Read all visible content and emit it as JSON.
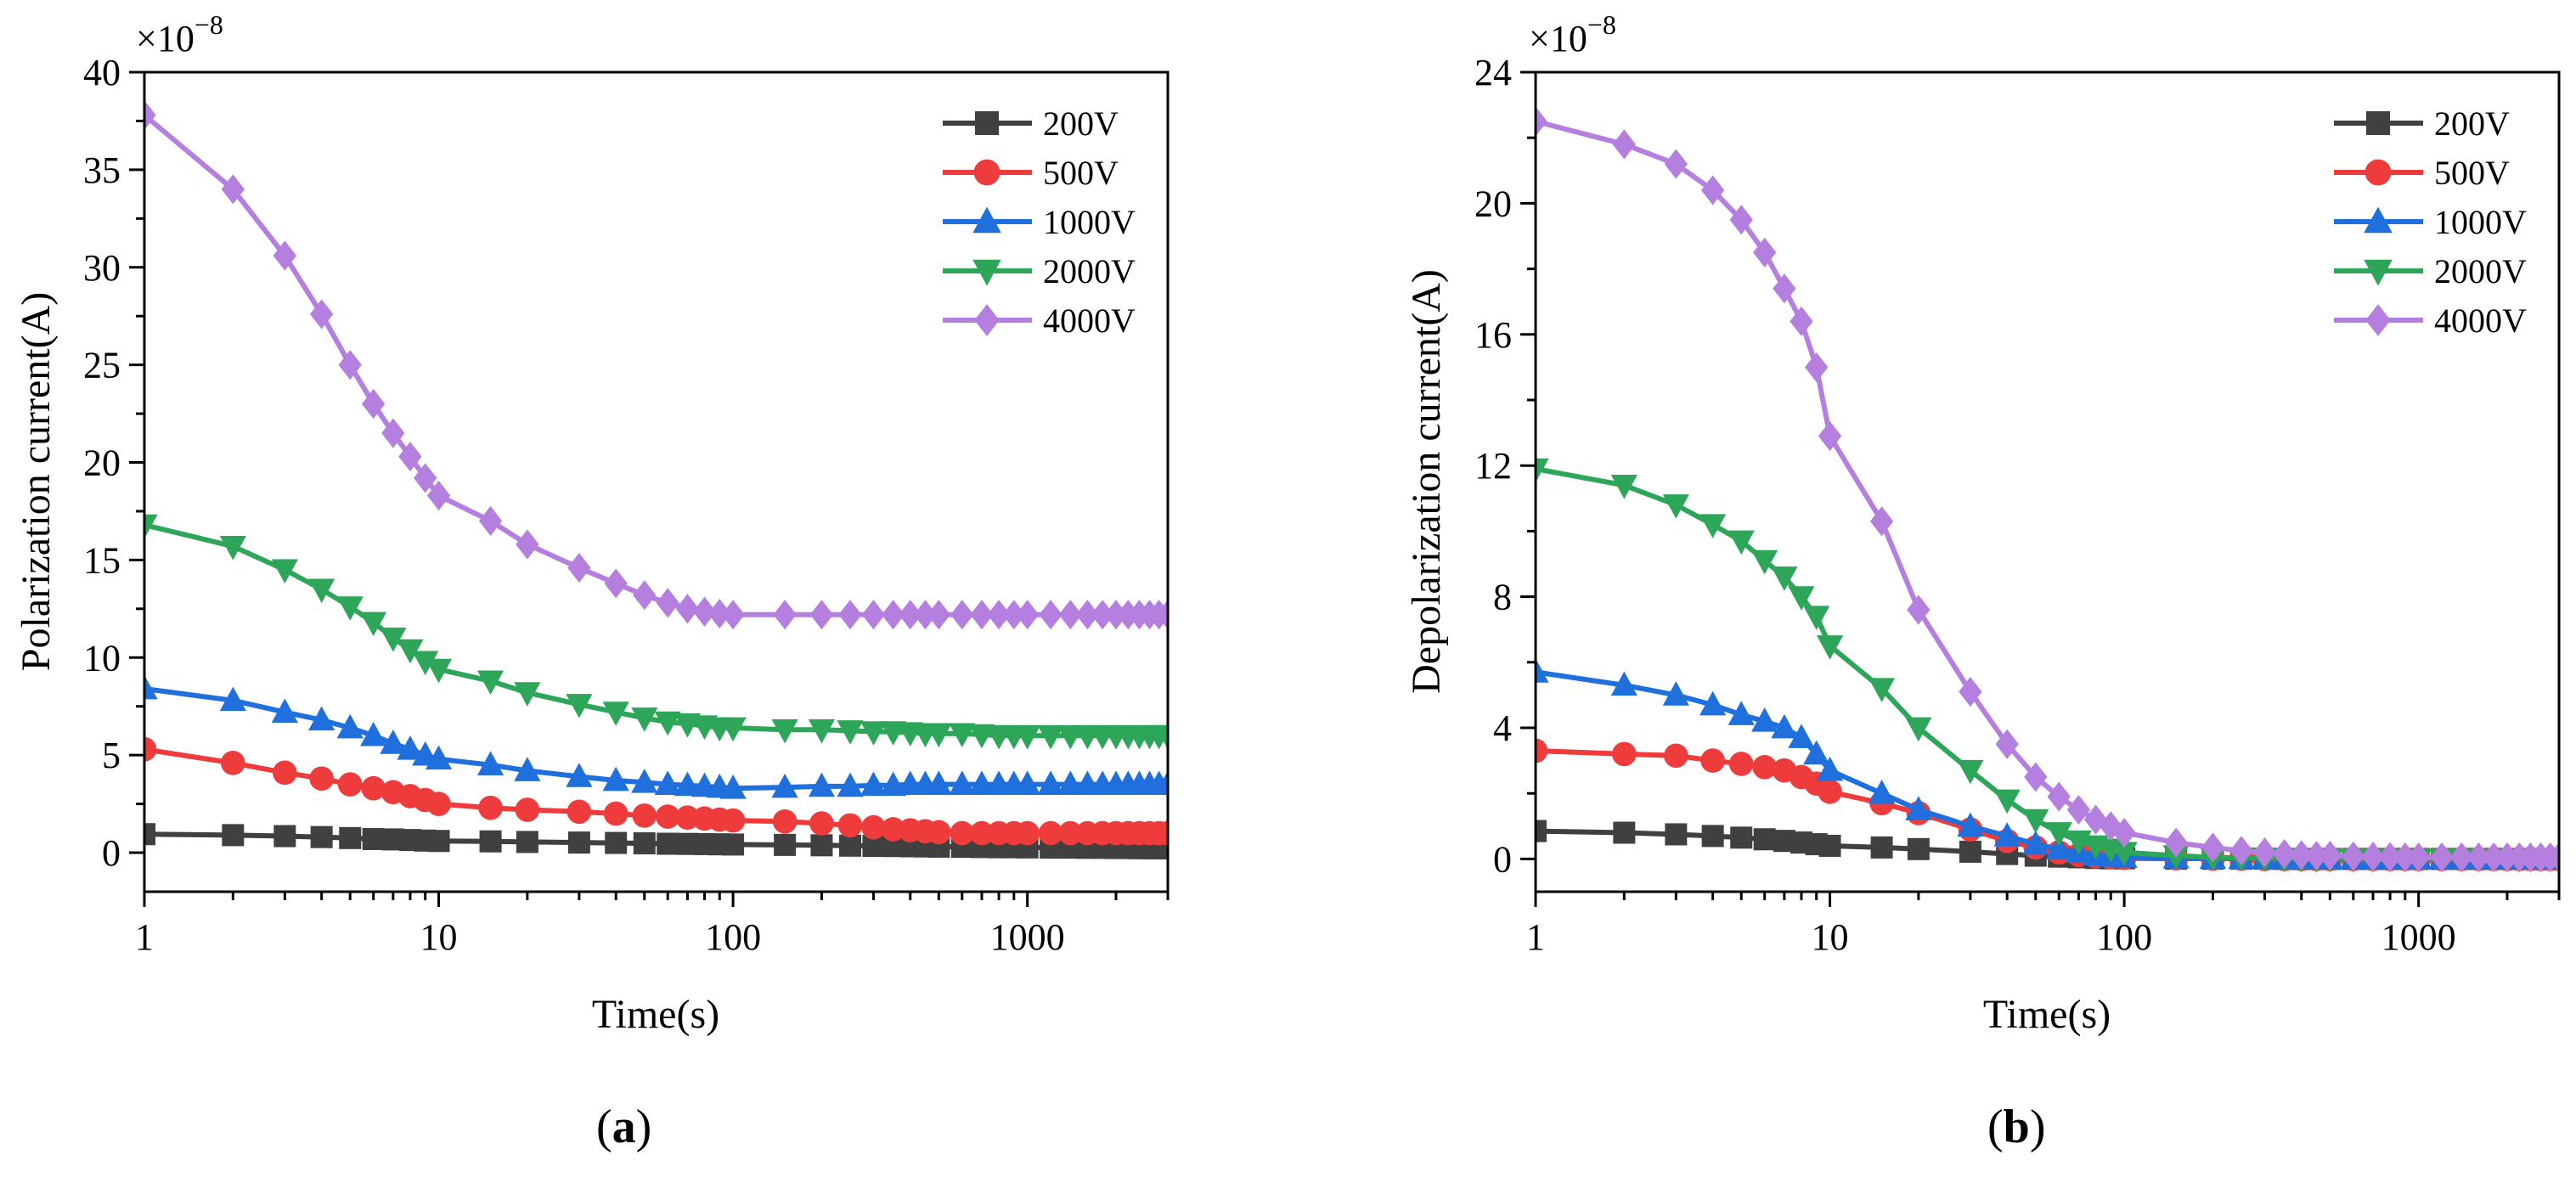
{
  "chart_data": [
    {
      "panel": "(a)",
      "panel_letter": "a",
      "type": "line",
      "xscale": "log",
      "xlim": [
        1,
        3000
      ],
      "ylim": [
        -2,
        40
      ],
      "x_ticks": [
        1,
        10,
        100,
        1000
      ],
      "x_tick_labels": [
        "1",
        "10",
        "100",
        "1000"
      ],
      "y_ticks": [
        0,
        5,
        10,
        15,
        20,
        25,
        30,
        35,
        40
      ],
      "y_tick_labels": [
        "0",
        "5",
        "10",
        "15",
        "20",
        "25",
        "30",
        "35",
        "40"
      ],
      "y_scale_prefix": "×10",
      "y_scale_exponent": "−8",
      "xlabel": "Time(s)",
      "ylabel": "Polarization current(A)",
      "legend_position": "top-right",
      "x": [
        1,
        2,
        3,
        4,
        5,
        6,
        7,
        8,
        9,
        10,
        15,
        20,
        30,
        40,
        50,
        60,
        70,
        80,
        90,
        100,
        150,
        200,
        250,
        300,
        350,
        400,
        450,
        500,
        600,
        700,
        800,
        900,
        1000,
        1200,
        1400,
        1600,
        1800,
        2000,
        2200,
        2400,
        2600,
        2800,
        3000
      ],
      "series": [
        {
          "name": "200V",
          "color": "#404040",
          "marker": "square",
          "values": [
            0.95,
            0.9,
            0.85,
            0.8,
            0.75,
            0.7,
            0.68,
            0.65,
            0.62,
            0.6,
            0.58,
            0.55,
            0.52,
            0.5,
            0.48,
            0.46,
            0.45,
            0.44,
            0.43,
            0.42,
            0.4,
            0.38,
            0.36,
            0.35,
            0.34,
            0.33,
            0.32,
            0.31,
            0.3,
            0.29,
            0.28,
            0.28,
            0.27,
            0.26,
            0.26,
            0.25,
            0.25,
            0.24,
            0.24,
            0.23,
            0.23,
            0.22,
            0.22
          ]
        },
        {
          "name": "500V",
          "color": "#ee3b3b",
          "marker": "circle",
          "values": [
            5.3,
            4.6,
            4.1,
            3.8,
            3.5,
            3.3,
            3.1,
            2.9,
            2.7,
            2.5,
            2.3,
            2.2,
            2.1,
            2.0,
            1.9,
            1.85,
            1.8,
            1.75,
            1.7,
            1.65,
            1.6,
            1.5,
            1.4,
            1.3,
            1.2,
            1.15,
            1.1,
            1.05,
            1.0,
            1.0,
            1.0,
            1.0,
            1.0,
            1.0,
            1.0,
            1.0,
            1.0,
            1.0,
            1.0,
            1.0,
            1.0,
            1.0,
            1.0
          ]
        },
        {
          "name": "1000V",
          "color": "#1f6fdc",
          "marker": "triangle-up",
          "values": [
            8.4,
            7.8,
            7.2,
            6.8,
            6.4,
            6.0,
            5.6,
            5.3,
            5.0,
            4.8,
            4.5,
            4.2,
            3.9,
            3.7,
            3.6,
            3.5,
            3.45,
            3.4,
            3.35,
            3.3,
            3.35,
            3.4,
            3.4,
            3.45,
            3.45,
            3.5,
            3.5,
            3.5,
            3.5,
            3.5,
            3.5,
            3.5,
            3.5,
            3.5,
            3.5,
            3.5,
            3.5,
            3.5,
            3.5,
            3.5,
            3.5,
            3.5,
            3.5
          ]
        },
        {
          "name": "2000V",
          "color": "#2ea65a",
          "marker": "triangle-down",
          "values": [
            16.8,
            15.7,
            14.5,
            13.5,
            12.6,
            11.8,
            11.0,
            10.4,
            9.8,
            9.4,
            8.8,
            8.2,
            7.6,
            7.2,
            6.9,
            6.7,
            6.6,
            6.5,
            6.4,
            6.4,
            6.3,
            6.3,
            6.25,
            6.2,
            6.2,
            6.15,
            6.1,
            6.1,
            6.1,
            6.05,
            6.0,
            6.0,
            6.0,
            6.0,
            6.0,
            6.0,
            6.0,
            6.0,
            6.0,
            6.0,
            6.0,
            6.0,
            6.0
          ]
        },
        {
          "name": "4000V",
          "color": "#b47fde",
          "marker": "diamond",
          "values": [
            37.8,
            34.0,
            30.6,
            27.6,
            25.0,
            23.0,
            21.5,
            20.3,
            19.2,
            18.3,
            17.0,
            15.8,
            14.6,
            13.8,
            13.2,
            12.8,
            12.5,
            12.35,
            12.25,
            12.2,
            12.2,
            12.2,
            12.2,
            12.2,
            12.2,
            12.2,
            12.2,
            12.2,
            12.2,
            12.2,
            12.2,
            12.2,
            12.2,
            12.2,
            12.2,
            12.2,
            12.2,
            12.2,
            12.2,
            12.2,
            12.2,
            12.2,
            12.2
          ]
        }
      ]
    },
    {
      "panel": "(b)",
      "panel_letter": "b",
      "type": "line",
      "xscale": "log",
      "xlim": [
        1,
        3000
      ],
      "ylim": [
        -1,
        24
      ],
      "x_ticks": [
        1,
        10,
        100,
        1000
      ],
      "x_tick_labels": [
        "1",
        "10",
        "100",
        "1000"
      ],
      "y_ticks": [
        0,
        4,
        8,
        12,
        16,
        20,
        24
      ],
      "y_tick_labels": [
        "0",
        "4",
        "8",
        "12",
        "16",
        "20",
        "24"
      ],
      "y_scale_prefix": "×10",
      "y_scale_exponent": "−8",
      "xlabel": "Time(s)",
      "ylabel": "Depolarization current(A)",
      "legend_position": "top-right",
      "x": [
        1,
        2,
        3,
        4,
        5,
        6,
        7,
        8,
        9,
        10,
        15,
        20,
        30,
        40,
        50,
        60,
        70,
        80,
        90,
        100,
        150,
        200,
        250,
        300,
        350,
        400,
        450,
        500,
        600,
        700,
        800,
        900,
        1000,
        1200,
        1400,
        1600,
        1800,
        2000,
        2200,
        2400,
        2600,
        2800,
        3000
      ],
      "series": [
        {
          "name": "200V",
          "color": "#404040",
          "marker": "square",
          "values": [
            0.85,
            0.8,
            0.75,
            0.7,
            0.65,
            0.6,
            0.55,
            0.5,
            0.45,
            0.4,
            0.35,
            0.3,
            0.22,
            0.15,
            0.1,
            0.07,
            0.05,
            0.03,
            0.02,
            0.02,
            0.01,
            0.01,
            0.01,
            0.01,
            0,
            0,
            0,
            0,
            0,
            0,
            0,
            0,
            0,
            0,
            0,
            0,
            0,
            0,
            0,
            0,
            0,
            0,
            0
          ]
        },
        {
          "name": "500V",
          "color": "#ee3b3b",
          "marker": "circle",
          "values": [
            3.3,
            3.2,
            3.15,
            3.0,
            2.9,
            2.8,
            2.7,
            2.5,
            2.3,
            2.05,
            1.7,
            1.4,
            0.9,
            0.55,
            0.35,
            0.2,
            0.12,
            0.08,
            0.05,
            0.03,
            0.02,
            0.01,
            0.01,
            0,
            0,
            0,
            0,
            0,
            0,
            0,
            0,
            0,
            0,
            0,
            0,
            0,
            0,
            0,
            0,
            0,
            0,
            0,
            0
          ]
        },
        {
          "name": "1000V",
          "color": "#1f6fdc",
          "marker": "triangle-up",
          "values": [
            5.7,
            5.3,
            5.0,
            4.7,
            4.4,
            4.2,
            4.0,
            3.7,
            3.2,
            2.7,
            2.0,
            1.5,
            1.0,
            0.7,
            0.45,
            0.3,
            0.2,
            0.12,
            0.08,
            0.05,
            0.03,
            0.02,
            0.01,
            0.01,
            0,
            0,
            0,
            0,
            0,
            0,
            0,
            0,
            0,
            0,
            0,
            0,
            0,
            0,
            0,
            0,
            0,
            0,
            0
          ]
        },
        {
          "name": "2000V",
          "color": "#2ea65a",
          "marker": "triangle-down",
          "values": [
            11.9,
            11.4,
            10.8,
            10.2,
            9.7,
            9.1,
            8.6,
            8.0,
            7.4,
            6.5,
            5.2,
            4.0,
            2.7,
            1.8,
            1.2,
            0.8,
            0.55,
            0.4,
            0.3,
            0.2,
            0.1,
            0.05,
            0.03,
            0.02,
            0.01,
            0,
            0,
            0,
            0,
            0,
            0,
            0,
            0,
            0,
            0,
            0,
            0,
            0,
            0,
            0,
            0,
            0,
            0
          ]
        },
        {
          "name": "4000V",
          "color": "#b47fde",
          "marker": "diamond",
          "values": [
            22.5,
            21.8,
            21.2,
            20.4,
            19.5,
            18.5,
            17.4,
            16.4,
            15.0,
            12.9,
            10.3,
            7.6,
            5.1,
            3.5,
            2.5,
            1.9,
            1.5,
            1.2,
            1.0,
            0.8,
            0.5,
            0.35,
            0.25,
            0.2,
            0.15,
            0.12,
            0.1,
            0.1,
            0.08,
            0.07,
            0.06,
            0.05,
            0.05,
            0.05,
            0.05,
            0.05,
            0.05,
            0.05,
            0.05,
            0.05,
            0.05,
            0.05,
            0.05
          ]
        }
      ]
    }
  ]
}
